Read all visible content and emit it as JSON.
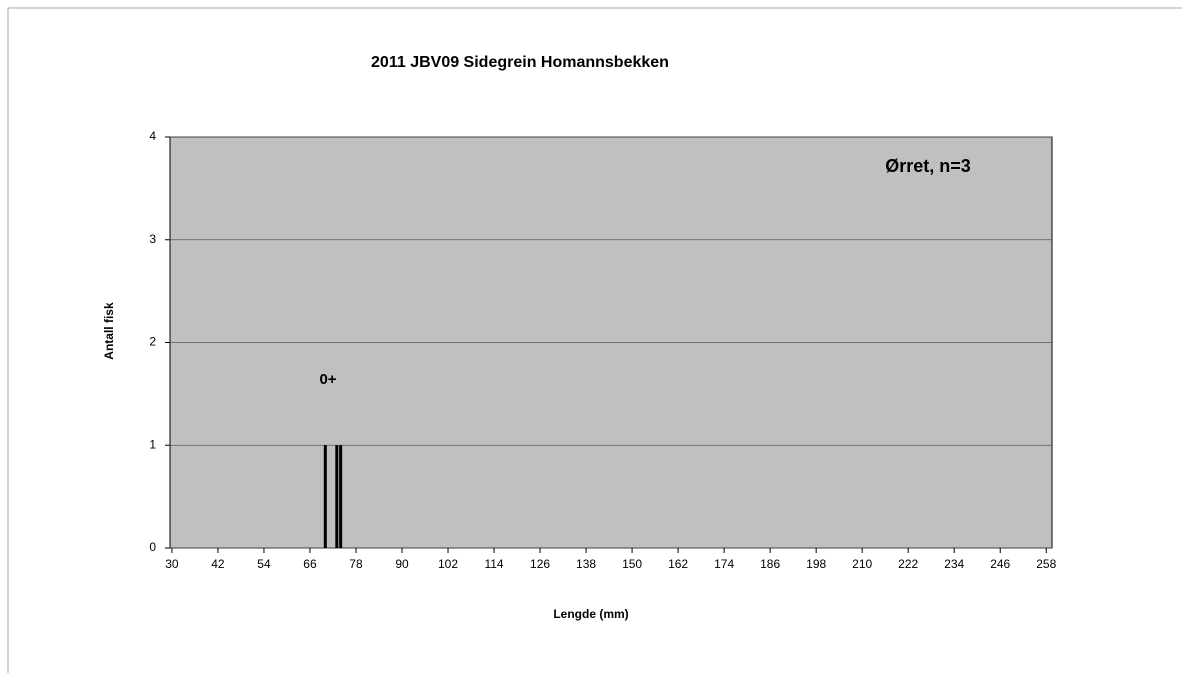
{
  "chart_data": {
    "type": "bar",
    "title": "2011 JBV09 Sidegrein Homannsbekken",
    "xlabel": "Lengde (mm)",
    "ylabel": "Antall fisk",
    "annotations": [
      "Ørret, n=3",
      "0+"
    ],
    "x": [
      70,
      73,
      74
    ],
    "values": [
      1,
      1,
      1
    ],
    "color": "#000000",
    "xlim": [
      29.5,
      259.5
    ],
    "xticks": [
      30,
      42,
      54,
      66,
      78,
      90,
      102,
      114,
      126,
      138,
      150,
      162,
      174,
      186,
      198,
      210,
      222,
      234,
      246,
      258
    ],
    "ylim": [
      0,
      4
    ],
    "yticks": [
      0,
      1,
      2,
      3,
      4
    ],
    "grid": true
  }
}
